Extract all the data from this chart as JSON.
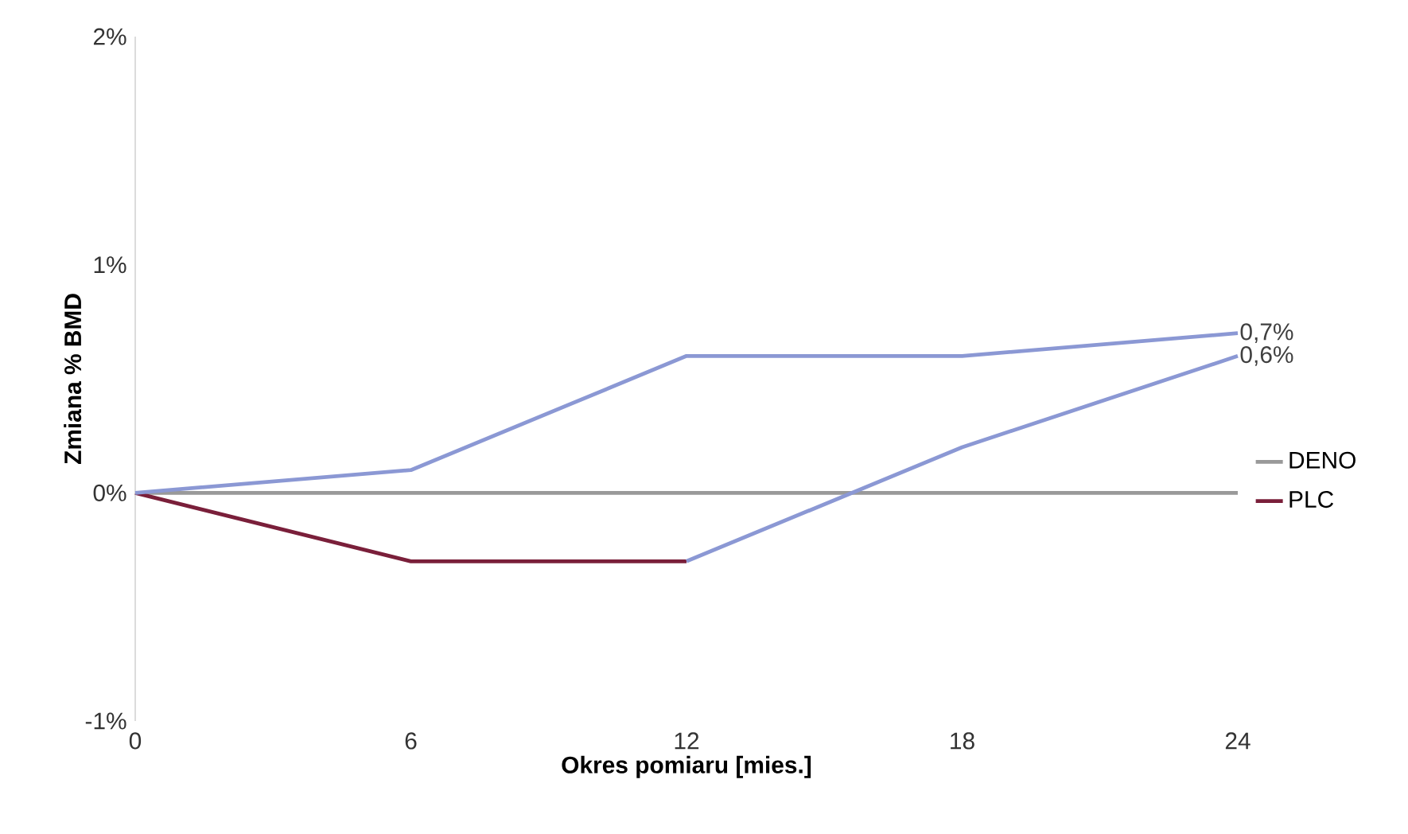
{
  "chart_data": {
    "type": "line",
    "xlabel": "Okres pomiaru [mies.]",
    "ylabel": "Zmiana % BMD",
    "x": [
      0,
      6,
      12,
      18,
      24
    ],
    "xlim": [
      0,
      24
    ],
    "xticks": [
      0,
      6,
      12,
      18,
      24
    ],
    "ylim": [
      -1,
      2
    ],
    "yticks": [
      {
        "value": -1,
        "label": "-1%"
      },
      {
        "value": 0,
        "label": "0%"
      },
      {
        "value": 1,
        "label": "1%"
      },
      {
        "value": 2,
        "label": "2%"
      }
    ],
    "grid": false,
    "legend": "right",
    "marker": "none",
    "line_style": "solid",
    "series": [
      {
        "name": "DENO",
        "color": "#999999",
        "values": [
          0,
          0,
          0,
          0,
          0
        ]
      },
      {
        "name": "PLC",
        "color": "#7a1f3a",
        "values": [
          0,
          -0.3,
          -0.3,
          null,
          null
        ]
      },
      {
        "color": "#8b98d4",
        "values": [
          0,
          0.1,
          0.6,
          0.6,
          0.7
        ],
        "value_labels": [
          null,
          null,
          null,
          null,
          "0,7%"
        ]
      },
      {
        "color": "#8b98d4",
        "values": [
          null,
          null,
          -0.3,
          0.2,
          0.6
        ],
        "value_labels": [
          null,
          null,
          null,
          null,
          "0,6%"
        ]
      }
    ]
  }
}
